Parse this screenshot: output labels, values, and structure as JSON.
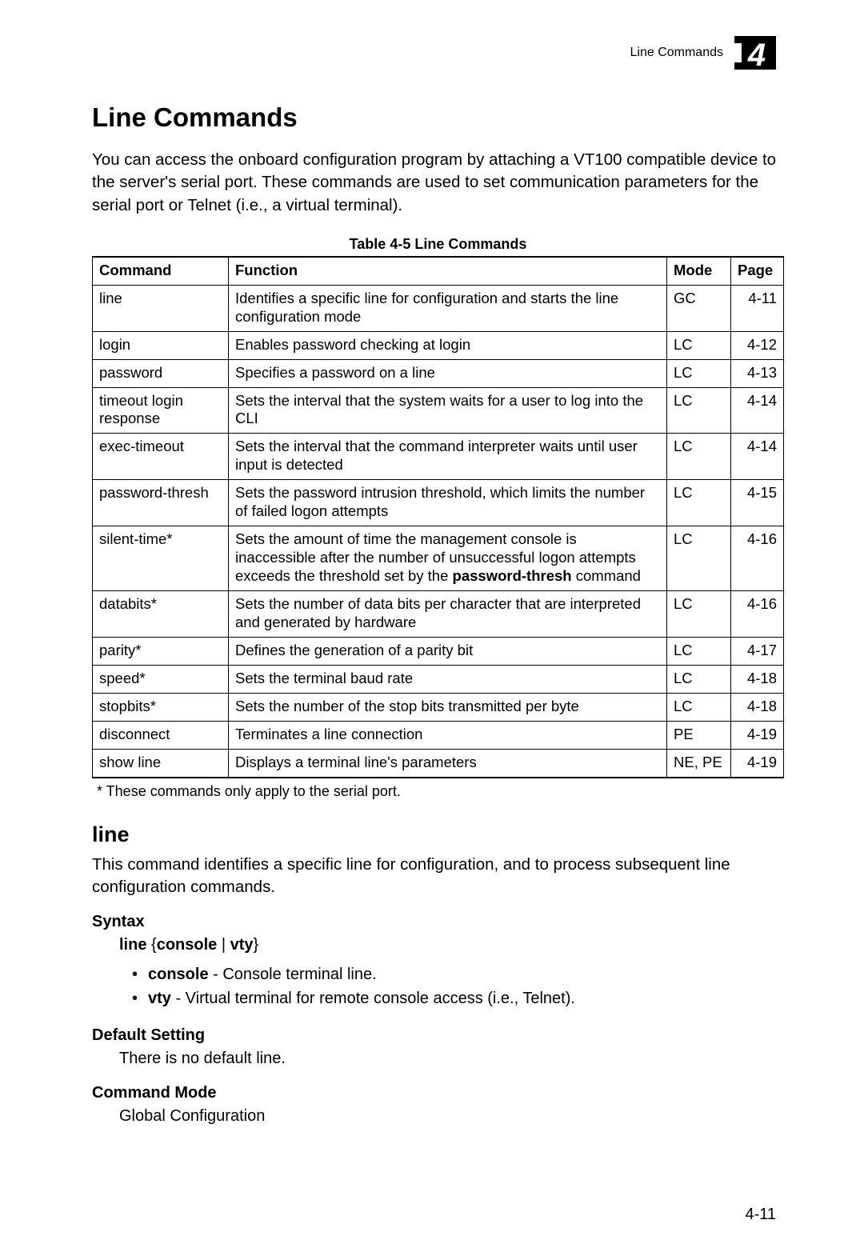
{
  "header": {
    "label": "Line Commands",
    "chapter_number": "4",
    "icon_bg": "#000000",
    "icon_fg": "#ffffff"
  },
  "title": "Line Commands",
  "intro": "You can access the onboard configuration program by attaching a VT100 compatible device to the server's serial port. These commands are used to set communication parameters for the serial port or Telnet (i.e., a virtual terminal).",
  "table": {
    "caption": "Table 4-5  Line Commands",
    "columns": [
      "Command",
      "Function",
      "Mode",
      "Page"
    ],
    "rows": [
      {
        "command": "line",
        "function_parts": [
          {
            "t": "Identifies a specific line for configuration and starts the line configuration mode"
          }
        ],
        "mode": "GC",
        "page": "4-11"
      },
      {
        "command": "login",
        "function_parts": [
          {
            "t": "Enables password checking at login"
          }
        ],
        "mode": "LC",
        "page": "4-12"
      },
      {
        "command": "password",
        "function_parts": [
          {
            "t": "Specifies a password on a line"
          }
        ],
        "mode": "LC",
        "page": "4-13"
      },
      {
        "command": "timeout login response",
        "function_parts": [
          {
            "t": "Sets the interval that the system waits for a user to log into the CLI"
          }
        ],
        "mode": "LC",
        "page": "4-14"
      },
      {
        "command": "exec-timeout",
        "function_parts": [
          {
            "t": "Sets the interval that the command interpreter waits until user input is detected"
          }
        ],
        "mode": "LC",
        "page": "4-14"
      },
      {
        "command": "password-thresh",
        "function_parts": [
          {
            "t": "Sets the password intrusion threshold, which limits the number of failed logon attempts"
          }
        ],
        "mode": "LC",
        "page": "4-15"
      },
      {
        "command": "silent-time*",
        "function_parts": [
          {
            "t": "Sets the amount of time the management console is inaccessible after the number of unsuccessful logon attempts exceeds the threshold set by the "
          },
          {
            "b": true,
            "t": "password-thresh"
          },
          {
            "t": " command"
          }
        ],
        "mode": "LC",
        "page": "4-16"
      },
      {
        "command": "databits*",
        "function_parts": [
          {
            "t": "Sets the number of data bits per character that are interpreted and generated by hardware"
          }
        ],
        "mode": "LC",
        "page": "4-16"
      },
      {
        "command": "parity*",
        "function_parts": [
          {
            "t": "Defines the generation of a parity bit"
          }
        ],
        "mode": "LC",
        "page": "4-17"
      },
      {
        "command": "speed*",
        "function_parts": [
          {
            "t": "Sets the terminal baud rate"
          }
        ],
        "mode": "LC",
        "page": "4-18"
      },
      {
        "command": "stopbits*",
        "function_parts": [
          {
            "t": "Sets the number of the stop bits transmitted per byte"
          }
        ],
        "mode": "LC",
        "page": "4-18"
      },
      {
        "command": "disconnect",
        "function_parts": [
          {
            "t": "Terminates a line connection"
          }
        ],
        "mode": "PE",
        "page": "4-19"
      },
      {
        "command": "show line",
        "function_parts": [
          {
            "t": "Displays a terminal line's parameters"
          }
        ],
        "mode": "NE, PE",
        "page": "4-19"
      }
    ],
    "footnote": "* These commands only apply to the serial port."
  },
  "command_detail": {
    "name": "line",
    "description": "This command identifies a specific line for configuration, and to process subsequent line configuration commands.",
    "syntax_label": "Syntax",
    "syntax_parts": [
      {
        "b": true,
        "t": "line"
      },
      {
        "t": " {"
      },
      {
        "b": true,
        "t": "console"
      },
      {
        "t": " | "
      },
      {
        "b": true,
        "t": "vty"
      },
      {
        "t": "}"
      }
    ],
    "options": [
      {
        "term": "console",
        "desc": " - Console terminal line."
      },
      {
        "term": "vty",
        "desc": " - Virtual terminal for remote console access (i.e., Telnet)."
      }
    ],
    "default_label": "Default Setting",
    "default_text": "There is no default line.",
    "mode_label": "Command Mode",
    "mode_text": "Global Configuration"
  },
  "page_number": "4-11"
}
